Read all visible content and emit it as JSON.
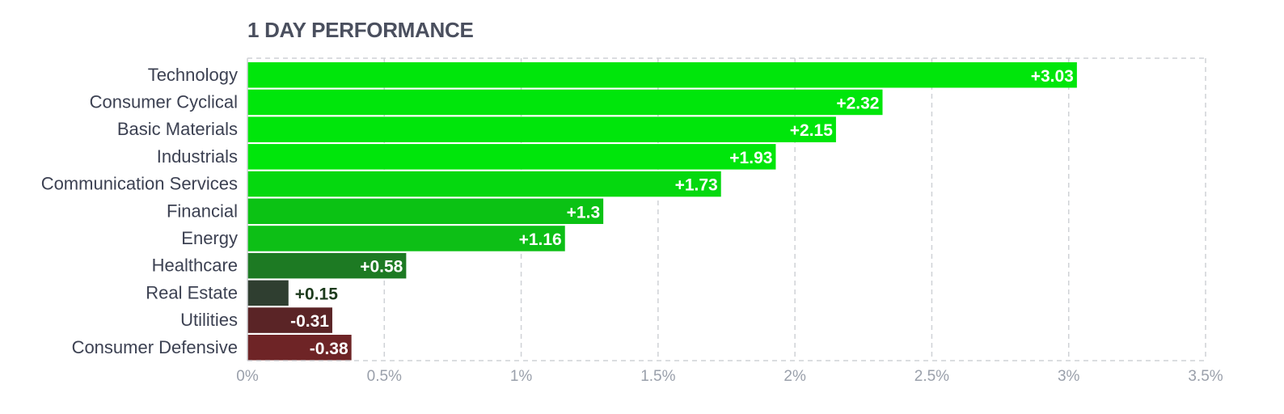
{
  "chart_data": {
    "type": "bar",
    "orientation": "horizontal",
    "title": "1 DAY PERFORMANCE",
    "categories": [
      "Technology",
      "Consumer Cyclical",
      "Basic Materials",
      "Industrials",
      "Communication Services",
      "Financial",
      "Energy",
      "Healthcare",
      "Real Estate",
      "Utilities",
      "Consumer Defensive"
    ],
    "values": [
      3.03,
      2.32,
      2.15,
      1.93,
      1.73,
      1.3,
      1.16,
      0.58,
      0.15,
      -0.31,
      -0.38
    ],
    "value_labels": [
      "+3.03",
      "+2.32",
      "+2.15",
      "+1.93",
      "+1.73",
      "+1.3",
      "+1.16",
      "+0.58",
      "+0.15",
      "-0.31",
      "-0.38"
    ],
    "bar_colors": [
      "#00e60b",
      "#00e60b",
      "#00e60b",
      "#00e60b",
      "#05d80f",
      "#0bc214",
      "#0dbf16",
      "#1d7a23",
      "#2f3e30",
      "#5a2426",
      "#6e2426"
    ],
    "xticks": [
      "0%",
      "0.5%",
      "1%",
      "1.5%",
      "2%",
      "2.5%",
      "3%",
      "3.5%"
    ],
    "xlim": [
      0,
      3.5
    ],
    "bar_extent": "absolute value",
    "grid": true,
    "xlabel": "",
    "ylabel": ""
  }
}
